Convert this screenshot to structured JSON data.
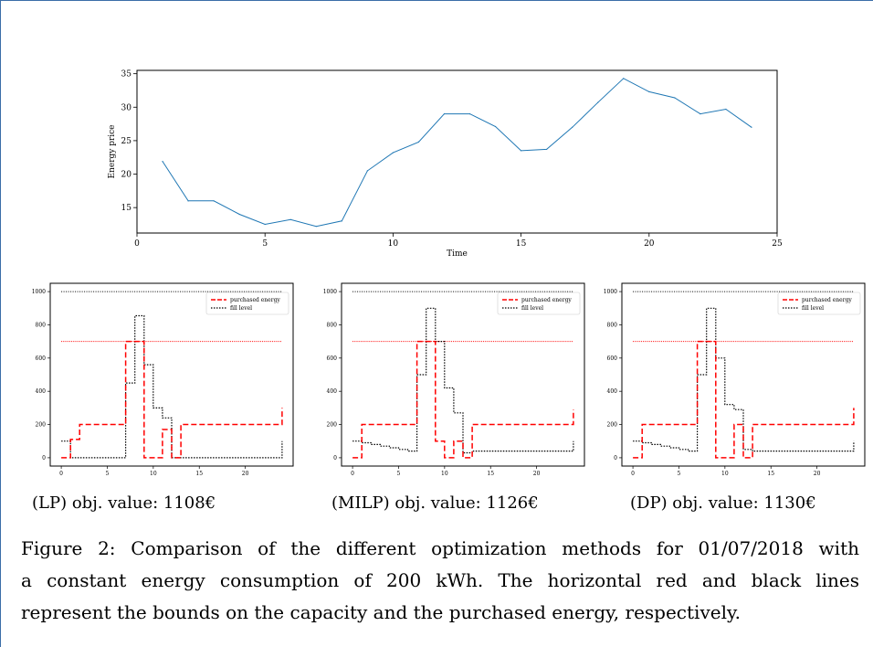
{
  "chart_data": [
    {
      "type": "line",
      "title": "",
      "xlabel": "Time",
      "ylabel": "Energy price",
      "xlim": [
        0,
        25
      ],
      "ylim": [
        11.2,
        35.5
      ],
      "xticks": [
        "0",
        "5",
        "10",
        "15",
        "20",
        "25"
      ],
      "yticks": [
        "15",
        "20",
        "25",
        "30",
        "35"
      ],
      "grid": false,
      "color": "#1f77b4",
      "series": [
        {
          "x": [
            1,
            2,
            3,
            4,
            5,
            6,
            7,
            8,
            9,
            10,
            11,
            12,
            13,
            14,
            15,
            16,
            17,
            18,
            19,
            20,
            21,
            22,
            23,
            24
          ],
          "values": [
            21.9,
            16.0,
            16.0,
            14.0,
            12.5,
            13.2,
            12.2,
            13.0,
            20.5,
            23.2,
            24.8,
            29.0,
            29.0,
            27.1,
            23.5,
            23.7,
            27.0,
            30.7,
            34.3,
            32.3,
            31.4,
            29.0,
            29.7,
            27.0
          ]
        }
      ]
    },
    {
      "type": "line",
      "caption": "(LP) obj. value: 1108€",
      "xlim": [
        -1.2,
        25.2
      ],
      "ylim": [
        -50,
        1050
      ],
      "xticks": [
        "0",
        "5",
        "10",
        "15",
        "20"
      ],
      "yticks": [
        "0",
        "200",
        "400",
        "600",
        "800",
        "1000"
      ],
      "grid": false,
      "legend": "top-right",
      "capacity_bound": 1000,
      "purchase_bound": 700,
      "series": [
        {
          "name": "purchased energy",
          "style": "dashed-red",
          "steps": [
            [
              0,
              0
            ],
            [
              1,
              110
            ],
            [
              2,
              200
            ],
            [
              7,
              700
            ],
            [
              9,
              0
            ],
            [
              11,
              170
            ],
            [
              12,
              0
            ],
            [
              13,
              200
            ],
            [
              24,
              300
            ]
          ]
        },
        {
          "name": "fill level",
          "style": "dotted-black",
          "steps": [
            [
              0,
              100
            ],
            [
              1,
              0
            ],
            [
              7,
              450
            ],
            [
              8,
              855
            ],
            [
              9,
              560
            ],
            [
              10,
              300
            ],
            [
              11,
              240
            ],
            [
              12,
              0
            ],
            [
              24,
              100
            ]
          ]
        }
      ]
    },
    {
      "type": "line",
      "caption": "(MILP) obj. value: 1126€",
      "xlim": [
        -1.2,
        25.2
      ],
      "ylim": [
        -50,
        1050
      ],
      "xticks": [
        "0",
        "5",
        "10",
        "15",
        "20"
      ],
      "yticks": [
        "0",
        "200",
        "400",
        "600",
        "800",
        "1000"
      ],
      "grid": false,
      "legend": "top-right",
      "capacity_bound": 1000,
      "purchase_bound": 700,
      "series": [
        {
          "name": "purchased energy",
          "style": "dashed-red",
          "steps": [
            [
              0,
              0
            ],
            [
              1,
              200
            ],
            [
              7,
              700
            ],
            [
              9,
              100
            ],
            [
              10,
              0
            ],
            [
              11,
              100
            ],
            [
              12,
              0
            ],
            [
              13,
              200
            ],
            [
              24,
              290
            ]
          ]
        },
        {
          "name": "fill level",
          "style": "dotted-black",
          "steps": [
            [
              0,
              100
            ],
            [
              1,
              90
            ],
            [
              2,
              80
            ],
            [
              3,
              70
            ],
            [
              4,
              60
            ],
            [
              5,
              50
            ],
            [
              6,
              40
            ],
            [
              7,
              500
            ],
            [
              8,
              900
            ],
            [
              9,
              700
            ],
            [
              10,
              420
            ],
            [
              11,
              270
            ],
            [
              12,
              30
            ],
            [
              13,
              40
            ],
            [
              24,
              100
            ]
          ]
        }
      ]
    },
    {
      "type": "line",
      "caption": "(DP) obj. value: 1130€",
      "xlim": [
        -1.2,
        25.2
      ],
      "ylim": [
        -50,
        1050
      ],
      "xticks": [
        "0",
        "5",
        "10",
        "15",
        "20"
      ],
      "yticks": [
        "0",
        "200",
        "400",
        "600",
        "800",
        "1000"
      ],
      "grid": false,
      "legend": "top-right",
      "capacity_bound": 1000,
      "purchase_bound": 700,
      "series": [
        {
          "name": "purchased energy",
          "style": "dashed-red",
          "steps": [
            [
              0,
              0
            ],
            [
              1,
              200
            ],
            [
              7,
              700
            ],
            [
              9,
              0
            ],
            [
              11,
              200
            ],
            [
              12,
              0
            ],
            [
              13,
              200
            ],
            [
              24,
              300
            ]
          ]
        },
        {
          "name": "fill level",
          "style": "dotted-black",
          "steps": [
            [
              0,
              100
            ],
            [
              1,
              90
            ],
            [
              2,
              80
            ],
            [
              3,
              70
            ],
            [
              4,
              60
            ],
            [
              5,
              50
            ],
            [
              6,
              40
            ],
            [
              7,
              500
            ],
            [
              8,
              900
            ],
            [
              9,
              600
            ],
            [
              10,
              320
            ],
            [
              11,
              290
            ],
            [
              12,
              50
            ],
            [
              13,
              40
            ],
            [
              24,
              100
            ]
          ]
        }
      ]
    }
  ],
  "subcaptions": [
    "(LP) obj. value: 1108€",
    "(MILP) obj. value: 1126€",
    "(DP) obj. value: 1130€"
  ],
  "caption": {
    "lines": [
      "Figure 2: Comparison of the different optimization methods for 01/07/2018 with",
      "a constant energy consumption of 200 kWh. The horizontal red and black lines",
      "represent the bounds on the capacity and the purchased energy, respectively."
    ]
  },
  "colors": {
    "price_line": "#1f77b4",
    "purchased": "#ff0000",
    "fill": "#000000",
    "frame": "#3b6ea8"
  }
}
